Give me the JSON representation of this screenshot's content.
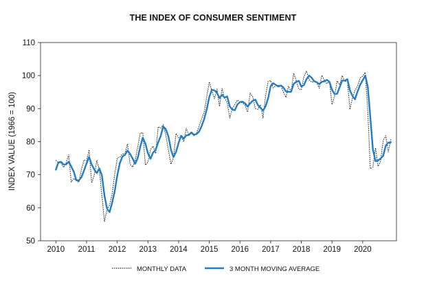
{
  "chart_data": {
    "type": "line",
    "title": "THE INDEX OF CONSUMER SENTIMENT",
    "xlabel": "",
    "ylabel": "INDEX VALUE (1966 = 100)",
    "xlim": [
      2009.5,
      2021.1
    ],
    "ylim": [
      50,
      110
    ],
    "x_ticks": [
      "2010",
      "2011",
      "2012",
      "2013",
      "2014",
      "2015",
      "2016",
      "2017",
      "2018",
      "2019",
      "2020"
    ],
    "y_ticks": [
      "50",
      "60",
      "70",
      "80",
      "90",
      "100",
      "110"
    ],
    "grid": false,
    "legend_position": "bottom",
    "colors": {
      "monthly": "#222222",
      "moving_average": "#1f7ccc"
    },
    "x": [
      2010.0,
      2010.083,
      2010.167,
      2010.25,
      2010.333,
      2010.417,
      2010.5,
      2010.583,
      2010.667,
      2010.75,
      2010.833,
      2010.917,
      2011.0,
      2011.083,
      2011.167,
      2011.25,
      2011.333,
      2011.417,
      2011.5,
      2011.583,
      2011.667,
      2011.75,
      2011.833,
      2011.917,
      2012.0,
      2012.083,
      2012.167,
      2012.25,
      2012.333,
      2012.417,
      2012.5,
      2012.583,
      2012.667,
      2012.75,
      2012.833,
      2012.917,
      2013.0,
      2013.083,
      2013.167,
      2013.25,
      2013.333,
      2013.417,
      2013.5,
      2013.583,
      2013.667,
      2013.75,
      2013.833,
      2013.917,
      2014.0,
      2014.083,
      2014.167,
      2014.25,
      2014.333,
      2014.417,
      2014.5,
      2014.583,
      2014.667,
      2014.75,
      2014.833,
      2014.917,
      2015.0,
      2015.083,
      2015.167,
      2015.25,
      2015.333,
      2015.417,
      2015.5,
      2015.583,
      2015.667,
      2015.75,
      2015.833,
      2015.917,
      2016.0,
      2016.083,
      2016.167,
      2016.25,
      2016.333,
      2016.417,
      2016.5,
      2016.583,
      2016.667,
      2016.75,
      2016.833,
      2016.917,
      2017.0,
      2017.083,
      2017.167,
      2017.25,
      2017.333,
      2017.417,
      2017.5,
      2017.583,
      2017.667,
      2017.75,
      2017.833,
      2017.917,
      2018.0,
      2018.083,
      2018.167,
      2018.25,
      2018.333,
      2018.417,
      2018.5,
      2018.583,
      2018.667,
      2018.75,
      2018.833,
      2018.917,
      2019.0,
      2019.083,
      2019.167,
      2019.25,
      2019.333,
      2019.417,
      2019.5,
      2019.583,
      2019.667,
      2019.75,
      2019.833,
      2019.917,
      2020.0,
      2020.083,
      2020.167,
      2020.25,
      2020.333,
      2020.417,
      2020.5,
      2020.583,
      2020.667,
      2020.75,
      2020.833,
      2020.917
    ],
    "series": [
      {
        "name": "MONTHLY DATA",
        "values": [
          74.4,
          73.6,
          73.6,
          72.2,
          73.6,
          76.0,
          67.8,
          68.9,
          68.2,
          67.7,
          71.6,
          74.5,
          74.2,
          77.5,
          67.5,
          69.8,
          74.3,
          71.5,
          63.7,
          55.8,
          59.5,
          60.8,
          64.1,
          69.9,
          75.0,
          75.3,
          76.2,
          76.4,
          79.3,
          73.2,
          72.3,
          74.3,
          78.3,
          82.6,
          82.7,
          72.9,
          73.8,
          77.6,
          78.6,
          76.4,
          84.5,
          84.1,
          85.1,
          82.1,
          77.5,
          73.2,
          75.1,
          82.5,
          81.2,
          81.6,
          80.0,
          84.1,
          81.9,
          82.5,
          81.8,
          82.5,
          84.6,
          86.9,
          88.8,
          93.6,
          98.1,
          95.4,
          93.0,
          95.9,
          90.7,
          96.1,
          93.1,
          91.9,
          87.2,
          90.0,
          91.3,
          92.6,
          92.0,
          91.7,
          91.0,
          89.0,
          94.7,
          93.5,
          90.0,
          89.8,
          91.2,
          87.2,
          93.8,
          98.2,
          98.5,
          96.3,
          96.9,
          97.0,
          97.1,
          95.0,
          93.4,
          96.8,
          95.1,
          100.7,
          98.5,
          95.9,
          95.7,
          99.7,
          101.4,
          98.8,
          98.0,
          98.2,
          97.9,
          96.2,
          100.1,
          98.6,
          97.5,
          98.3,
          91.2,
          93.8,
          98.4,
          97.2,
          100.0,
          98.2,
          98.4,
          89.8,
          93.2,
          95.5,
          96.8,
          99.3,
          99.8,
          101.0,
          89.1,
          71.8,
          72.3,
          78.1,
          72.5,
          74.1,
          80.4,
          81.8,
          76.9,
          80.7
        ]
      },
      {
        "name": "3 MONTH MOVING AVERAGE",
        "values": [
          71.5,
          73.7,
          73.9,
          73.1,
          73.1,
          73.9,
          72.5,
          70.9,
          68.3,
          68.3,
          69.2,
          71.3,
          73.4,
          75.4,
          73.1,
          71.6,
          70.5,
          71.9,
          69.8,
          63.7,
          59.7,
          58.7,
          61.5,
          64.9,
          69.7,
          73.4,
          75.5,
          76.0,
          77.3,
          76.3,
          74.9,
          73.3,
          75.0,
          78.4,
          81.2,
          79.4,
          76.5,
          74.8,
          76.7,
          77.5,
          79.8,
          81.7,
          84.6,
          83.8,
          81.6,
          77.6,
          75.3,
          76.9,
          79.6,
          81.8,
          80.9,
          81.9,
          82.0,
          82.8,
          82.1,
          82.3,
          83.0,
          84.7,
          86.8,
          89.8,
          93.5,
          95.7,
          95.5,
          94.8,
          93.2,
          94.2,
          93.3,
          93.7,
          90.7,
          89.7,
          89.5,
          91.3,
          92.0,
          92.1,
          91.6,
          90.6,
          91.6,
          92.4,
          92.7,
          91.1,
          90.3,
          89.4,
          90.7,
          93.1,
          96.8,
          97.7,
          97.2,
          96.7,
          97.0,
          96.4,
          95.2,
          95.1,
          95.1,
          97.5,
          98.1,
          98.4,
          96.7,
          97.1,
          98.9,
          100.0,
          99.4,
          98.3,
          98.0,
          97.4,
          98.1,
          98.3,
          98.7,
          98.1,
          95.7,
          94.4,
          94.5,
          96.5,
          98.5,
          98.5,
          98.9,
          95.5,
          93.8,
          92.8,
          95.2,
          97.2,
          98.6,
          100.0,
          96.6,
          87.3,
          77.7,
          74.1,
          74.3,
          74.9,
          75.7,
          78.8,
          79.7,
          79.8
        ]
      }
    ]
  }
}
